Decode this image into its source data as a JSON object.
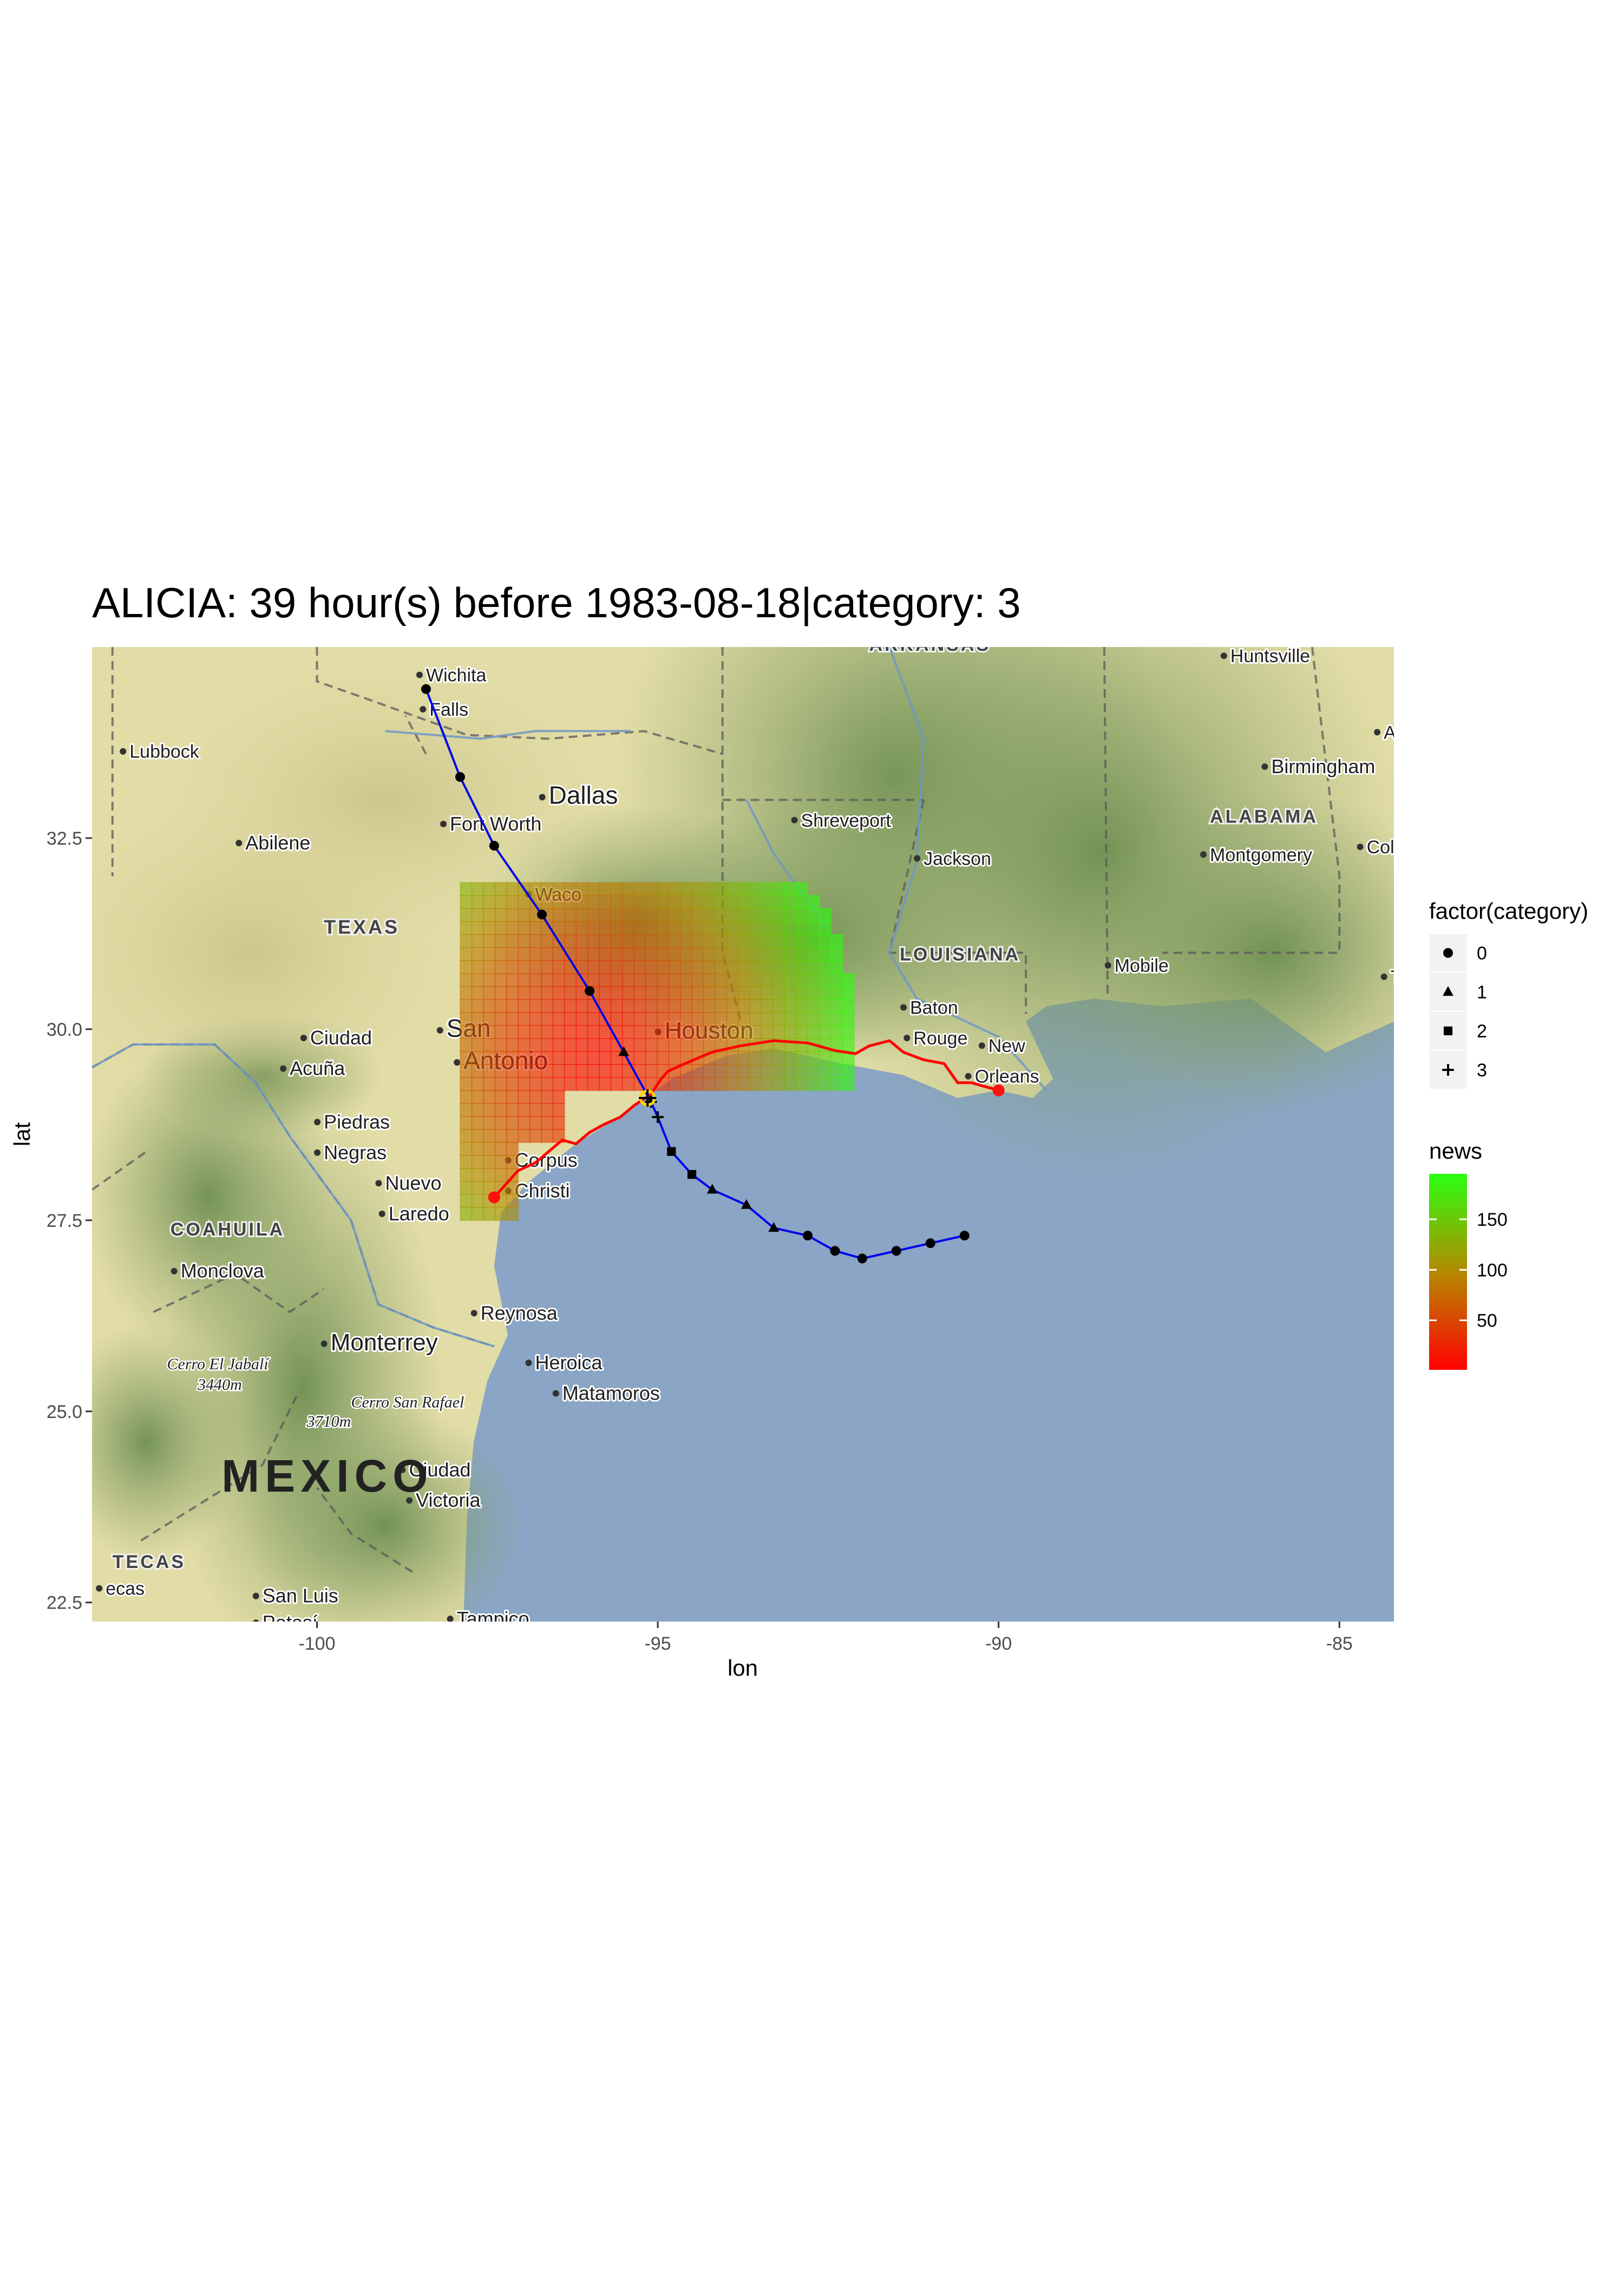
{
  "title": "ALICIA: 39 hour(s) before 1983-08-18|category: 3",
  "axes": {
    "x_label": "lon",
    "y_label": "lat",
    "x_range": [
      -103.3,
      -84.2
    ],
    "y_range": [
      22.25,
      35.0
    ],
    "x_ticks": [
      {
        "value": -100,
        "label": "-100"
      },
      {
        "value": -95,
        "label": "-95"
      },
      {
        "value": -90,
        "label": "-90"
      },
      {
        "value": -85,
        "label": "-85"
      }
    ],
    "y_ticks": [
      {
        "value": 22.5,
        "label": "22.5"
      },
      {
        "value": 25.0,
        "label": "25.0"
      },
      {
        "value": 27.5,
        "label": "27.5"
      },
      {
        "value": 30.0,
        "label": "30.0"
      },
      {
        "value": 32.5,
        "label": "32.5"
      }
    ]
  },
  "legend_category": {
    "title": "factor(category)",
    "entries": [
      {
        "label": "0",
        "shape": "circle"
      },
      {
        "label": "1",
        "shape": "triangle"
      },
      {
        "label": "2",
        "shape": "square"
      },
      {
        "label": "3",
        "shape": "plus"
      }
    ]
  },
  "legend_news": {
    "title": "news",
    "min": 1,
    "max": 195,
    "breaks": [
      {
        "value": 50,
        "label": "50"
      },
      {
        "value": 100,
        "label": "100"
      },
      {
        "value": 150,
        "label": "150"
      }
    ],
    "color_low": "#ff0000",
    "color_mid": "#b48a00",
    "color_high": "#2bff10"
  },
  "chart_data": {
    "type": "scatter",
    "storm": "ALICIA",
    "track": [
      {
        "lon": -90.5,
        "lat": 27.3,
        "category": 0
      },
      {
        "lon": -91.0,
        "lat": 27.2,
        "category": 0
      },
      {
        "lon": -91.5,
        "lat": 27.1,
        "category": 0
      },
      {
        "lon": -92.0,
        "lat": 27.0,
        "category": 0
      },
      {
        "lon": -92.4,
        "lat": 27.1,
        "category": 0
      },
      {
        "lon": -92.8,
        "lat": 27.3,
        "category": 0
      },
      {
        "lon": -93.3,
        "lat": 27.4,
        "category": 1
      },
      {
        "lon": -93.7,
        "lat": 27.7,
        "category": 1
      },
      {
        "lon": -94.2,
        "lat": 27.9,
        "category": 1
      },
      {
        "lon": -94.5,
        "lat": 28.1,
        "category": 2
      },
      {
        "lon": -94.8,
        "lat": 28.4,
        "category": 2
      },
      {
        "lon": -95.0,
        "lat": 28.85,
        "category": 3
      },
      {
        "lon": -95.1,
        "lat": 29.05,
        "category": 3
      },
      {
        "lon": -95.5,
        "lat": 29.7,
        "category": 1
      },
      {
        "lon": -96.0,
        "lat": 30.5,
        "category": 0
      },
      {
        "lon": -96.7,
        "lat": 31.5,
        "category": 0
      },
      {
        "lon": -97.4,
        "lat": 32.4,
        "category": 0
      },
      {
        "lon": -97.9,
        "lat": 33.3,
        "category": 0
      },
      {
        "lon": -98.4,
        "lat": 34.45,
        "category": 0
      }
    ],
    "current_position": {
      "lon": -95.15,
      "lat": 29.1
    },
    "coast_alert_endpoints": [
      {
        "lon": -97.4,
        "lat": 27.8
      },
      {
        "lon": -90.0,
        "lat": 29.2
      }
    ],
    "news_field": {
      "center": {
        "lon": -96.0,
        "lat": 29.6
      },
      "radius_deg": 3.85,
      "cell_deg": 0.17,
      "lon_range": [
        -97.9,
        -91.2
      ],
      "lat_range": [
        27.5,
        31.9
      ],
      "min": 1,
      "max": 195
    }
  },
  "basemap": {
    "ocean_color": "#8aa5c5",
    "land_dry_color": "#e2dca6",
    "land_green_color": "#7f9a5d",
    "places": [
      {
        "name": "Wichita",
        "lon": -98.4,
        "lat": 34.55,
        "size": 34,
        "kind": "city"
      },
      {
        "name": "Falls",
        "lon": -98.35,
        "lat": 34.1,
        "size": 34,
        "kind": "city"
      },
      {
        "name": "Lubbock",
        "lon": -102.75,
        "lat": 33.55,
        "size": 34,
        "kind": "city"
      },
      {
        "name": "Dallas",
        "lon": -96.6,
        "lat": 32.95,
        "size": 46,
        "kind": "city"
      },
      {
        "name": "Fort Worth",
        "lon": -98.05,
        "lat": 32.6,
        "size": 36,
        "kind": "city"
      },
      {
        "name": "Abilene",
        "lon": -101.05,
        "lat": 32.35,
        "size": 36,
        "kind": "city"
      },
      {
        "name": "Waco",
        "lon": -96.8,
        "lat": 31.68,
        "size": 34,
        "kind": "city"
      },
      {
        "name": "Shreveport",
        "lon": -92.9,
        "lat": 32.65,
        "size": 34,
        "kind": "city"
      },
      {
        "name": "Jackson",
        "lon": -91.1,
        "lat": 32.15,
        "size": 34,
        "kind": "city"
      },
      {
        "name": "Birmingham",
        "lon": -86.0,
        "lat": 33.35,
        "size": 36,
        "kind": "city"
      },
      {
        "name": "Montgomery",
        "lon": -86.9,
        "lat": 32.2,
        "size": 34,
        "kind": "city"
      },
      {
        "name": "Mobile",
        "lon": -88.3,
        "lat": 30.75,
        "size": 34,
        "kind": "city"
      },
      {
        "name": "Baton",
        "lon": -91.3,
        "lat": 30.2,
        "size": 34,
        "kind": "city"
      },
      {
        "name": "Rouge",
        "lon": -91.25,
        "lat": 29.8,
        "size": 34,
        "kind": "city"
      },
      {
        "name": "New",
        "lon": -90.15,
        "lat": 29.7,
        "size": 34,
        "kind": "city"
      },
      {
        "name": "Orleans",
        "lon": -90.35,
        "lat": 29.3,
        "size": 34,
        "kind": "city"
      },
      {
        "name": "Houston",
        "lon": -94.9,
        "lat": 29.88,
        "size": 44,
        "kind": "city"
      },
      {
        "name": "San",
        "lon": -98.1,
        "lat": 29.9,
        "size": 46,
        "kind": "city"
      },
      {
        "name": "Antonio",
        "lon": -97.85,
        "lat": 29.48,
        "size": 46,
        "kind": "city"
      },
      {
        "name": "Ciudad",
        "lon": -100.1,
        "lat": 29.8,
        "size": 36,
        "kind": "city"
      },
      {
        "name": "Acuña",
        "lon": -100.4,
        "lat": 29.4,
        "size": 36,
        "kind": "city"
      },
      {
        "name": "Piedras",
        "lon": -99.9,
        "lat": 28.7,
        "size": 36,
        "kind": "city"
      },
      {
        "name": "Negras",
        "lon": -99.9,
        "lat": 28.3,
        "size": 36,
        "kind": "city"
      },
      {
        "name": "Nuevo",
        "lon": -99.0,
        "lat": 27.9,
        "size": 36,
        "kind": "city"
      },
      {
        "name": "Laredo",
        "lon": -98.95,
        "lat": 27.5,
        "size": 36,
        "kind": "city"
      },
      {
        "name": "Corpus",
        "lon": -97.1,
        "lat": 28.2,
        "size": 36,
        "kind": "city"
      },
      {
        "name": "Christi",
        "lon": -97.1,
        "lat": 27.8,
        "size": 36,
        "kind": "city"
      },
      {
        "name": "Monclova",
        "lon": -102.0,
        "lat": 26.75,
        "size": 36,
        "kind": "city"
      },
      {
        "name": "Reynosa",
        "lon": -97.6,
        "lat": 26.2,
        "size": 36,
        "kind": "city"
      },
      {
        "name": "Monterrey",
        "lon": -99.8,
        "lat": 25.8,
        "size": 44,
        "kind": "city"
      },
      {
        "name": "Heroica",
        "lon": -96.8,
        "lat": 25.55,
        "size": 36,
        "kind": "city"
      },
      {
        "name": "Matamoros",
        "lon": -96.4,
        "lat": 25.15,
        "size": 36,
        "kind": "city"
      },
      {
        "name": "Ciudad",
        "lon": -98.65,
        "lat": 24.15,
        "size": 36,
        "kind": "city"
      },
      {
        "name": "Victoria",
        "lon": -98.55,
        "lat": 23.75,
        "size": 36,
        "kind": "city"
      },
      {
        "name": "San Luis",
        "lon": -100.8,
        "lat": 22.5,
        "size": 36,
        "kind": "city"
      },
      {
        "name": "Potosí",
        "lon": -100.8,
        "lat": 22.15,
        "size": 36,
        "kind": "city"
      },
      {
        "name": "Tampico",
        "lon": -97.95,
        "lat": 22.2,
        "size": 36,
        "kind": "city"
      },
      {
        "name": "Colum",
        "lon": -84.6,
        "lat": 32.3,
        "size": 34,
        "kind": "city"
      },
      {
        "name": "A",
        "lon": -84.35,
        "lat": 33.8,
        "size": 34,
        "kind": "city"
      },
      {
        "name": "T",
        "lon": -84.25,
        "lat": 30.6,
        "size": 34,
        "kind": "city"
      },
      {
        "name": "Huntsville",
        "lon": -86.6,
        "lat": 34.8,
        "size": 34,
        "kind": "city"
      },
      {
        "name": "ecas",
        "lon": -103.1,
        "lat": 22.6,
        "size": 34,
        "kind": "city"
      },
      {
        "name": "TEXAS",
        "lon": -99.9,
        "lat": 31.25,
        "size": 36,
        "kind": "state"
      },
      {
        "name": "ARKANSAS",
        "lon": -91.9,
        "lat": 34.95,
        "size": 34,
        "kind": "state"
      },
      {
        "name": "LOUISIANA",
        "lon": -91.45,
        "lat": 30.9,
        "size": 34,
        "kind": "state"
      },
      {
        "name": "ALABAMA",
        "lon": -86.9,
        "lat": 32.7,
        "size": 34,
        "kind": "state"
      },
      {
        "name": "COAHUILA",
        "lon": -102.15,
        "lat": 27.3,
        "size": 34,
        "kind": "state"
      },
      {
        "name": "TECAS",
        "lon": -103.0,
        "lat": 22.95,
        "size": 34,
        "kind": "state"
      },
      {
        "name": "MEXICO",
        "lon": -101.4,
        "lat": 23.95,
        "size": 84,
        "kind": "country"
      },
      {
        "name": "Cerro El Jabalí",
        "lon": -102.2,
        "lat": 25.55,
        "size": 30,
        "kind": "peak"
      },
      {
        "name": "3440m",
        "lon": -101.75,
        "lat": 25.28,
        "size": 30,
        "kind": "peak"
      },
      {
        "name": "Cerro San Rafael",
        "lon": -99.5,
        "lat": 25.05,
        "size": 30,
        "kind": "peak"
      },
      {
        "name": "3710m",
        "lon": -100.15,
        "lat": 24.8,
        "size": 30,
        "kind": "peak"
      }
    ]
  }
}
